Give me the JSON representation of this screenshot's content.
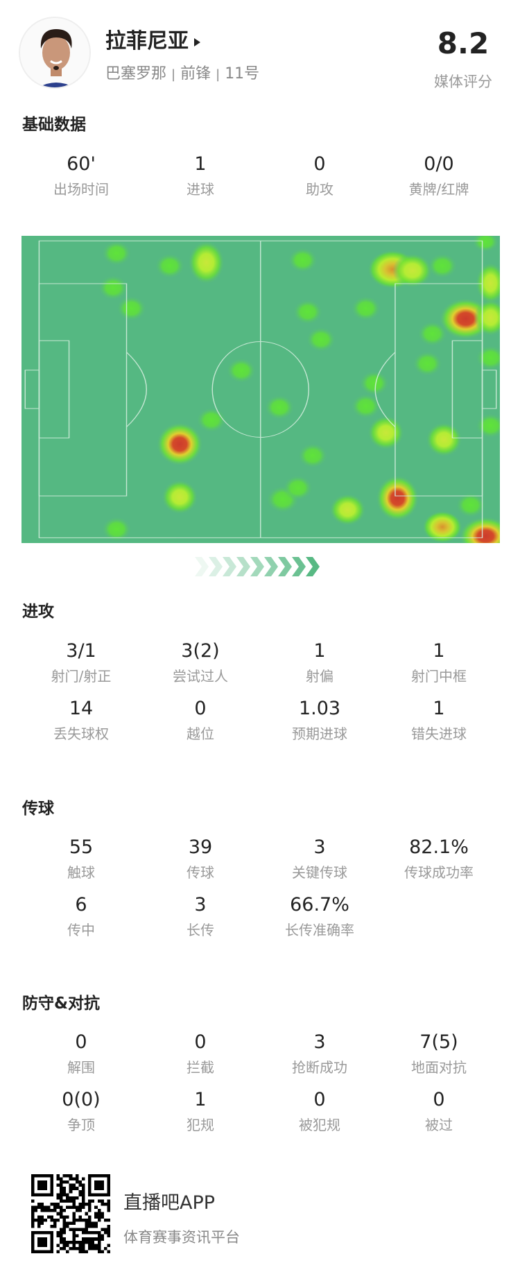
{
  "player": {
    "name": "拉菲尼亚",
    "team": "巴塞罗那",
    "position": "前锋",
    "number": "11号",
    "separator": "|"
  },
  "rating": {
    "value": "8.2",
    "label": "媒体评分"
  },
  "sections": {
    "basic": {
      "title": "基础数据",
      "stats": [
        {
          "value": "60'",
          "label": "出场时间"
        },
        {
          "value": "1",
          "label": "进球"
        },
        {
          "value": "0",
          "label": "助攻"
        },
        {
          "value": "0/0",
          "label": "黄牌/红牌"
        }
      ]
    },
    "attack": {
      "title": "进攻",
      "stats": [
        {
          "value": "3/1",
          "label": "射门/射正"
        },
        {
          "value": "3(2)",
          "label": "尝试过人"
        },
        {
          "value": "1",
          "label": "射偏"
        },
        {
          "value": "1",
          "label": "射门中框"
        },
        {
          "value": "14",
          "label": "丢失球权"
        },
        {
          "value": "0",
          "label": "越位"
        },
        {
          "value": "1.03",
          "label": "预期进球"
        },
        {
          "value": "1",
          "label": "错失进球"
        }
      ]
    },
    "passing": {
      "title": "传球",
      "stats": [
        {
          "value": "55",
          "label": "触球"
        },
        {
          "value": "39",
          "label": "传球"
        },
        {
          "value": "3",
          "label": "关键传球"
        },
        {
          "value": "82.1%",
          "label": "传球成功率"
        },
        {
          "value": "6",
          "label": "传中"
        },
        {
          "value": "3",
          "label": "长传"
        },
        {
          "value": "66.7%",
          "label": "长传准确率"
        }
      ]
    },
    "defense": {
      "title": "防守&对抗",
      "stats": [
        {
          "value": "0",
          "label": "解围"
        },
        {
          "value": "0",
          "label": "拦截"
        },
        {
          "value": "3",
          "label": "抢断成功"
        },
        {
          "value": "7(5)",
          "label": "地面对抗"
        },
        {
          "value": "0(0)",
          "label": "争顶"
        },
        {
          "value": "1",
          "label": "犯规"
        },
        {
          "value": "0",
          "label": "被犯规"
        },
        {
          "value": "0",
          "label": "被过"
        }
      ]
    }
  },
  "heatmap": {
    "pitch_color": "#55b882",
    "line_color": "#d9f0e2",
    "attack_direction": "right"
  },
  "footer": {
    "app_name": "直播吧APP",
    "tagline": "体育赛事资讯平台"
  }
}
